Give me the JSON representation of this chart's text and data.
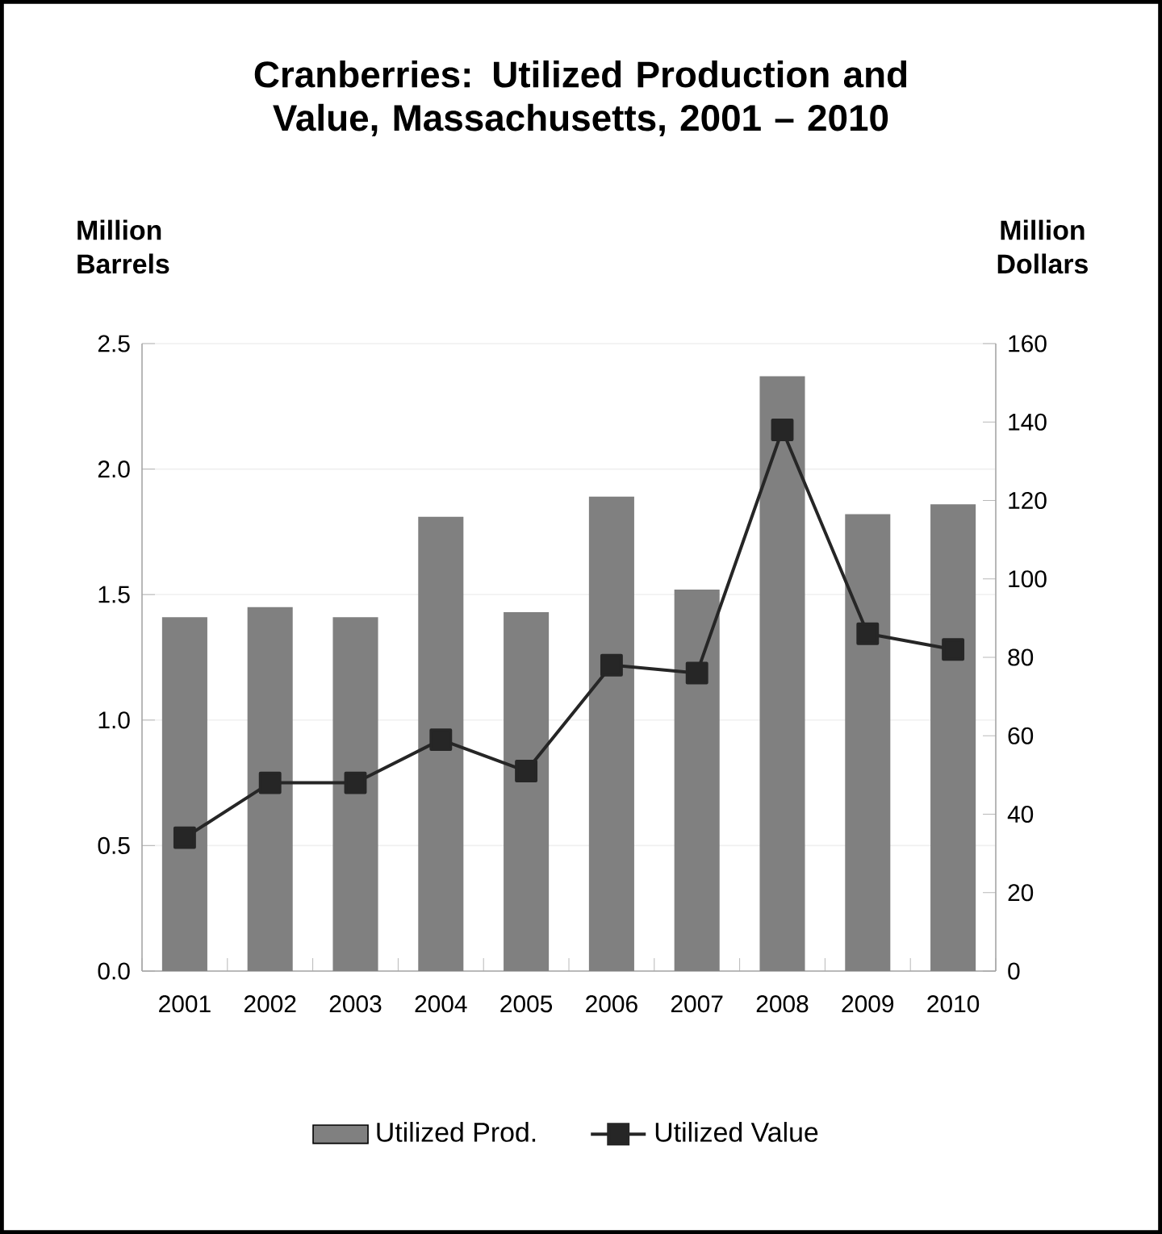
{
  "chart_data": {
    "type": "bar",
    "title": "Cranberries: Utilized Production and Value, Massachusetts, 2001 – 2010",
    "ylabel": "Million Barrels",
    "y2label": "Million Dollars",
    "categories": [
      "2001",
      "2002",
      "2003",
      "2004",
      "2005",
      "2006",
      "2007",
      "2008",
      "2009",
      "2010"
    ],
    "series": [
      {
        "name": "Utilized Prod.",
        "color": "#808080",
        "values": [
          1.41,
          1.45,
          1.41,
          1.81,
          1.43,
          1.89,
          1.52,
          2.37,
          1.82,
          1.86
        ]
      },
      {
        "name": "Utilized Value",
        "type": "line",
        "axis": "y2",
        "color": "#262626",
        "values": [
          34,
          48,
          48,
          59,
          51,
          78,
          76,
          138,
          86,
          82
        ]
      }
    ],
    "ylim": [
      0,
      2.5
    ],
    "yticks": [
      {
        "value": 0,
        "label": "0.0"
      },
      0.5,
      {
        "value": 1,
        "label": "1.0"
      },
      1.5,
      {
        "value": 2,
        "label": "2.0"
      },
      2.5
    ],
    "y2lim": [
      0,
      160
    ],
    "y2ticks": [
      0,
      20,
      40,
      60,
      80,
      100,
      120,
      140,
      160
    ],
    "grid": "y",
    "legend": "bottom",
    "marker": "square",
    "line_style": "solid"
  }
}
